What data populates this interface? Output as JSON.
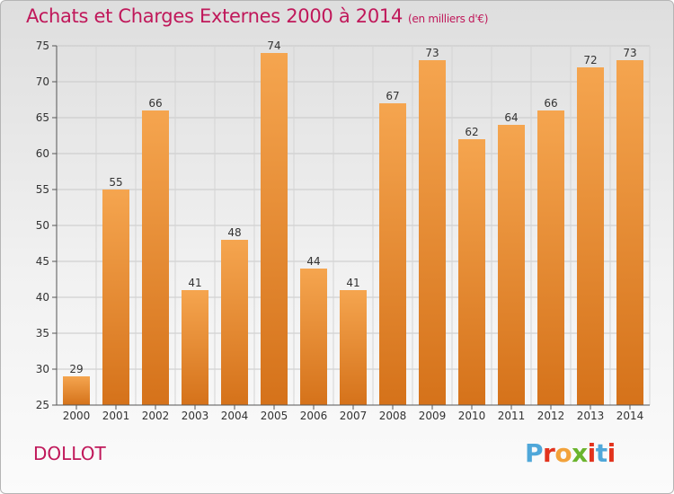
{
  "title": {
    "main": "Achats et Charges Externes 2000 à 2014",
    "unit": "(en milliers d'€)"
  },
  "commune": "DOLLOT",
  "logo": {
    "text": "Proxiti",
    "colors": [
      "#4fa7d9",
      "#e2331d",
      "#f2a23a",
      "#6ab42d",
      "#e2331d",
      "#4fa7d9",
      "#e2331d"
    ]
  },
  "colors": {
    "title": "#c0185a",
    "bar_light": "#f5a54f",
    "bar_dark": "#d5721a"
  },
  "chart_data": {
    "type": "bar",
    "categories": [
      "2000",
      "2001",
      "2002",
      "2003",
      "2004",
      "2005",
      "2006",
      "2007",
      "2008",
      "2009",
      "2010",
      "2011",
      "2012",
      "2013",
      "2014"
    ],
    "values": [
      29,
      55,
      66,
      41,
      48,
      74,
      44,
      41,
      67,
      73,
      62,
      64,
      66,
      72,
      73
    ],
    "ylim": [
      25,
      75
    ],
    "yticks": [
      25,
      30,
      35,
      40,
      45,
      50,
      55,
      60,
      65,
      70,
      75
    ],
    "grid": true,
    "data_labels": true
  }
}
